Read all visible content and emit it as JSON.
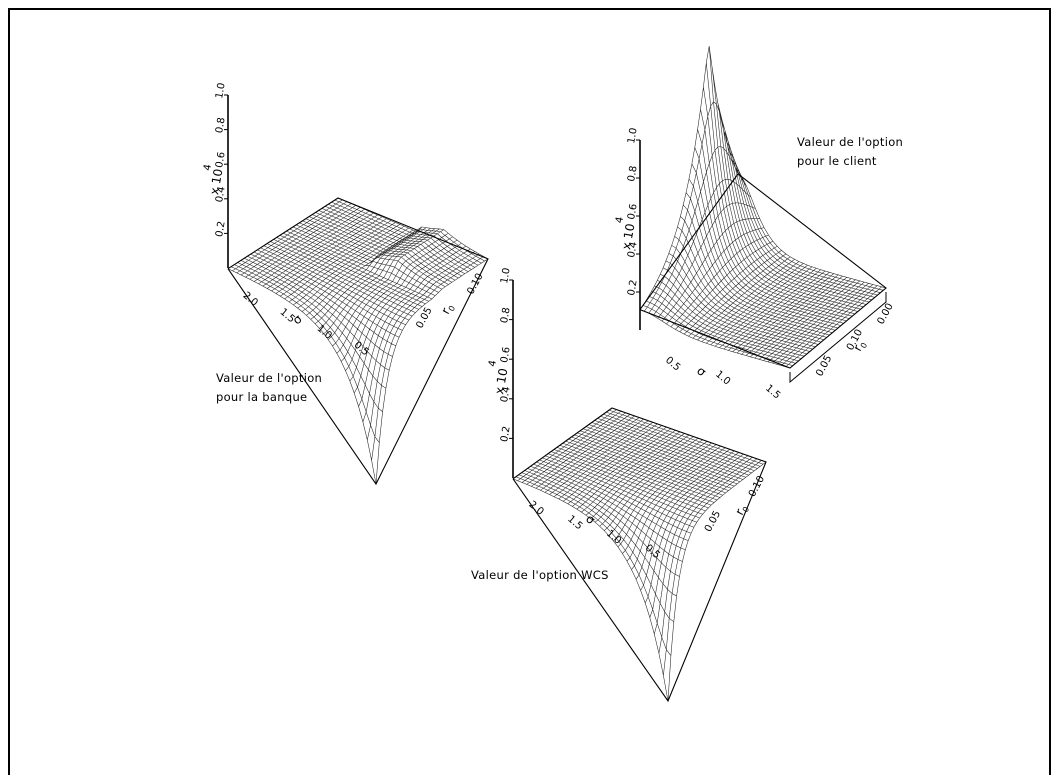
{
  "chart_data": [
    {
      "type": "surface",
      "name_text": [
        "Valeur de l'option",
        "pour la banque"
      ],
      "z_scale": "x 10",
      "z_scale_exp": "4",
      "z_ticks": [
        "0.2",
        "0.4",
        "0.6",
        "0.8",
        "1.0"
      ],
      "x_ticks": [
        "2.0",
        "1.5",
        "1.0",
        "0.5"
      ],
      "y_ticks": [
        "0.05",
        "0.10"
      ],
      "x_label": "σ",
      "y_label": "r",
      "y_label_sub": "0",
      "surface": "near-zero plateau with a sharp negative spike at low volatility / low rate, and a small step ridge"
    },
    {
      "type": "surface",
      "name_text": [
        "Valeur de l'option",
        "pour le client"
      ],
      "z_scale": "x 10",
      "z_scale_exp": "4",
      "z_ticks": [
        "0.2",
        "0.4",
        "0.6",
        "0.8",
        "1.0"
      ],
      "x_ticks": [
        "0.5",
        "1.0",
        "1.5"
      ],
      "y_ticks": [
        "0.05",
        "0.10",
        "0.00"
      ],
      "x_label": "σ",
      "y_label": "r",
      "y_label_sub": "0",
      "surface": "positive spike near zero volatility decaying to a flat plateau"
    },
    {
      "type": "surface",
      "name_text": [
        "Valeur de l'option WCS"
      ],
      "z_scale": "x 10",
      "z_scale_exp": "4",
      "z_ticks": [
        "0.2",
        "0.4",
        "0.6",
        "0.8",
        "1.0"
      ],
      "x_ticks": [
        "2.0",
        "1.5",
        "1.0",
        "0.5"
      ],
      "y_ticks": [
        "0.05",
        "0.10"
      ],
      "x_label": "σ",
      "y_label": "r",
      "y_label_sub": "0",
      "surface": "flat plateau with a sharp negative spike at low volatility"
    }
  ]
}
